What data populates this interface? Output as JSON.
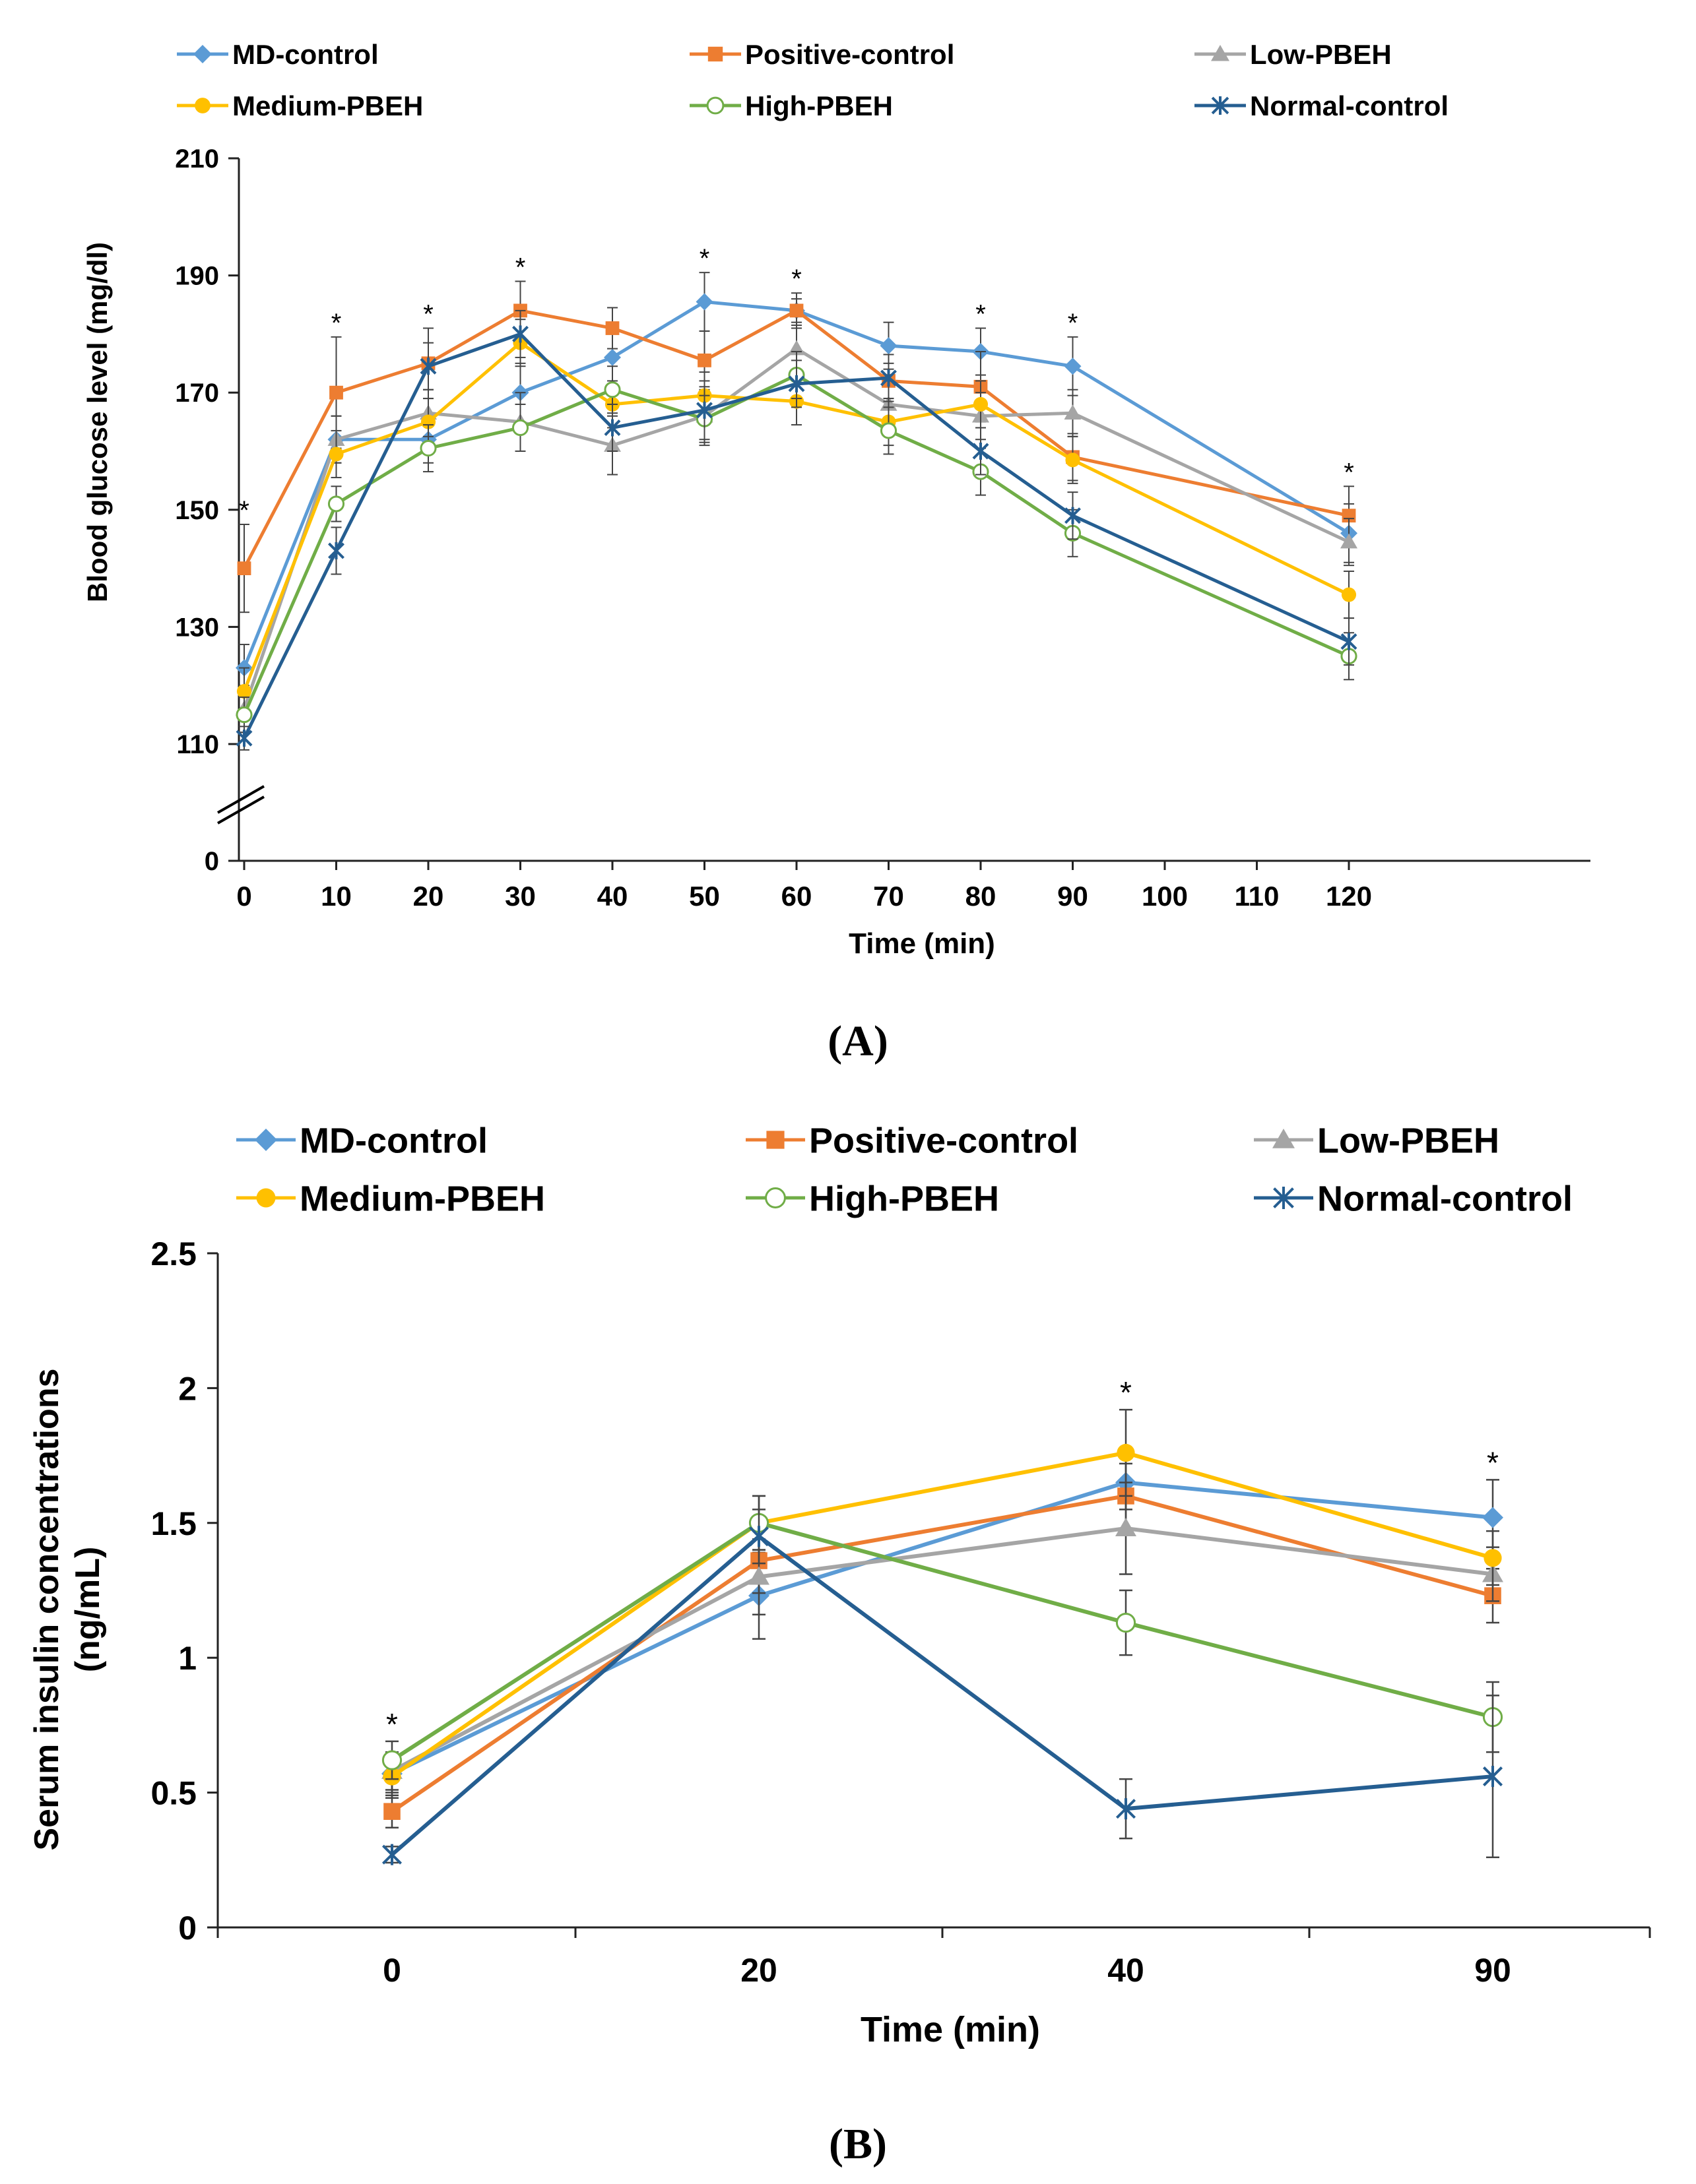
{
  "colors": {
    "MD-control": "#5B9BD5",
    "Positive-control": "#ED7D31",
    "Low-PBEH": "#A5A5A5",
    "Medium-PBEH": "#FFC000",
    "High-PBEH": "#70AD47",
    "Normal-control": "#255E91"
  },
  "chart_data": [
    {
      "panel": "A",
      "type": "line",
      "xlabel": "Time (min)",
      "ylabel": "Blood glucose level (mg/dl)",
      "y_ticks": [
        "210",
        "190",
        "170",
        "150",
        "130",
        "110",
        "0"
      ],
      "x_ticks": [
        "0",
        "10",
        "20",
        "30",
        "40",
        "50",
        "60",
        "70",
        "80",
        "90",
        "100",
        "110",
        "120"
      ],
      "axis_break": true,
      "x": [
        0,
        10,
        20,
        30,
        40,
        50,
        60,
        70,
        80,
        90,
        120
      ],
      "series": [
        {
          "name": "MD-control",
          "marker": "diamond",
          "values": [
            123,
            162,
            162,
            170,
            176,
            185.5,
            184,
            178,
            177,
            174.5,
            146
          ],
          "errors": [
            4,
            4,
            4,
            5,
            5,
            5,
            3,
            4,
            4,
            5,
            5
          ]
        },
        {
          "name": "Positive-control",
          "marker": "square",
          "values": [
            140,
            170,
            175,
            184,
            181,
            175.5,
            184,
            172,
            171,
            159,
            149
          ],
          "errors": [
            7.5,
            9.5,
            6,
            5,
            3.5,
            5,
            2,
            3,
            6,
            4,
            5
          ]
        },
        {
          "name": "Low-PBEH",
          "marker": "triangle",
          "values": [
            116,
            162,
            166.5,
            165,
            161,
            166,
            177.5,
            168,
            166,
            166.5,
            144.5
          ],
          "errors": [
            4,
            4,
            4,
            5,
            5,
            5,
            4,
            4,
            4,
            4,
            4
          ]
        },
        {
          "name": "Medium-PBEH",
          "marker": "circle",
          "values": [
            119,
            159.5,
            165,
            178.5,
            168,
            169.5,
            168.5,
            165,
            168,
            158.5,
            135.5
          ],
          "errors": [
            4,
            4,
            4,
            4,
            4,
            4,
            4,
            4,
            4,
            4,
            4
          ]
        },
        {
          "name": "High-PBEH",
          "marker": "open-circle",
          "values": [
            115,
            151,
            160.5,
            164,
            170.5,
            165.5,
            173,
            163.5,
            156.5,
            146,
            125
          ],
          "errors": [
            3,
            3,
            4,
            4,
            4,
            4,
            4,
            4,
            4,
            4,
            4
          ]
        },
        {
          "name": "Normal-control",
          "marker": "asterisk",
          "values": [
            111,
            143,
            174.5,
            180,
            164,
            167,
            171.5,
            172.5,
            160,
            149,
            127.5
          ],
          "errors": [
            2,
            4,
            4,
            4,
            4,
            5,
            4,
            4,
            4,
            4,
            4
          ]
        }
      ],
      "significance_x": [
        0,
        10,
        20,
        30,
        50,
        60,
        80,
        90,
        120
      ],
      "significance_label": "*",
      "panel_label": "(A)"
    },
    {
      "panel": "B",
      "type": "line",
      "xlabel": "Time (min)",
      "ylabel_line1": "Serum insulin concentrations",
      "ylabel_line2": "(ng/mL)",
      "y_ticks": [
        "2.5",
        "2",
        "1.5",
        "1",
        "0.5",
        "0"
      ],
      "categories": [
        "0",
        "20",
        "40",
        "90"
      ],
      "ylim": [
        0,
        2.5
      ],
      "series": [
        {
          "name": "MD-control",
          "marker": "diamond",
          "values": [
            0.57,
            1.23,
            1.65,
            1.52
          ],
          "errors": [
            0.07,
            0.16,
            0.1,
            0.14
          ]
        },
        {
          "name": "Positive-control",
          "marker": "square",
          "values": [
            0.43,
            1.36,
            1.6,
            1.23
          ],
          "errors": [
            0.06,
            0.12,
            0.12,
            0.1
          ]
        },
        {
          "name": "Low-PBEH",
          "marker": "triangle",
          "values": [
            0.58,
            1.3,
            1.48,
            1.31
          ],
          "errors": [
            0.07,
            0.14,
            0.17,
            0.1
          ]
        },
        {
          "name": "Medium-PBEH",
          "marker": "circle",
          "values": [
            0.56,
            1.5,
            1.76,
            1.37
          ],
          "errors": [
            0.08,
            0.1,
            0.16,
            0.1
          ]
        },
        {
          "name": "High-PBEH",
          "marker": "open-circle",
          "values": [
            0.62,
            1.5,
            1.13,
            0.78
          ],
          "errors": [
            0.07,
            0.1,
            0.12,
            0.13
          ]
        },
        {
          "name": "Normal-control",
          "marker": "asterisk",
          "values": [
            0.27,
            1.45,
            0.44,
            0.56
          ],
          "errors": [
            0.03,
            0.1,
            0.11,
            0.3
          ]
        }
      ],
      "significance_categories": [
        "0",
        "40",
        "90"
      ],
      "significance_label": "*",
      "panel_label": "(B)"
    }
  ]
}
